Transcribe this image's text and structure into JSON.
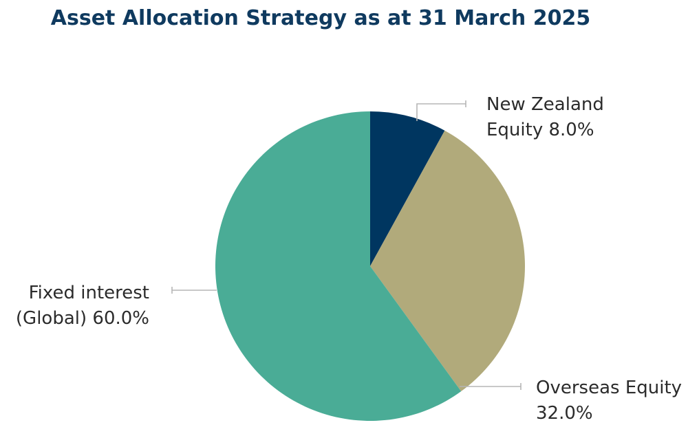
{
  "chart_data": {
    "type": "pie",
    "title": "Asset Allocation Strategy as at 31 March 2025",
    "slices": [
      {
        "label_lines": [
          "New Zealand",
          "Equity 8.0%"
        ],
        "value": 8.0,
        "color": "#003660"
      },
      {
        "label_lines": [
          "Overseas Equity",
          "32.0%"
        ],
        "value": 32.0,
        "color": "#b1aa7b"
      },
      {
        "label_lines": [
          "Fixed interest",
          "(Global) 60.0%"
        ],
        "value": 60.0,
        "color": "#4aac96"
      }
    ],
    "start_angle": "12 o'clock",
    "direction": "clockwise",
    "legend": "none"
  }
}
